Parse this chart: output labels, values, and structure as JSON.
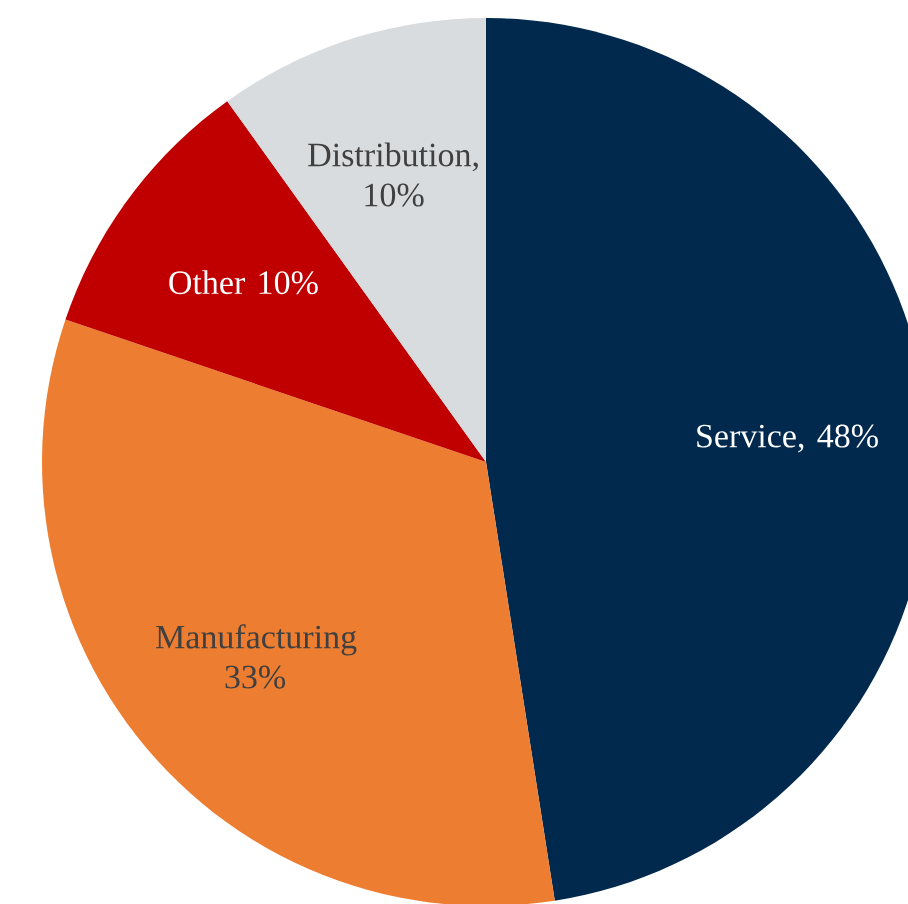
{
  "chart_data": {
    "type": "pie",
    "categories": [
      "Service, 48%",
      "Manufacturing 33%",
      "Other 10%",
      "Distribution, 10%"
    ],
    "values": [
      48,
      33,
      10,
      10
    ],
    "colors": [
      "#00294d",
      "#ed7d31",
      "#c00000",
      "#d9dcde"
    ]
  }
}
